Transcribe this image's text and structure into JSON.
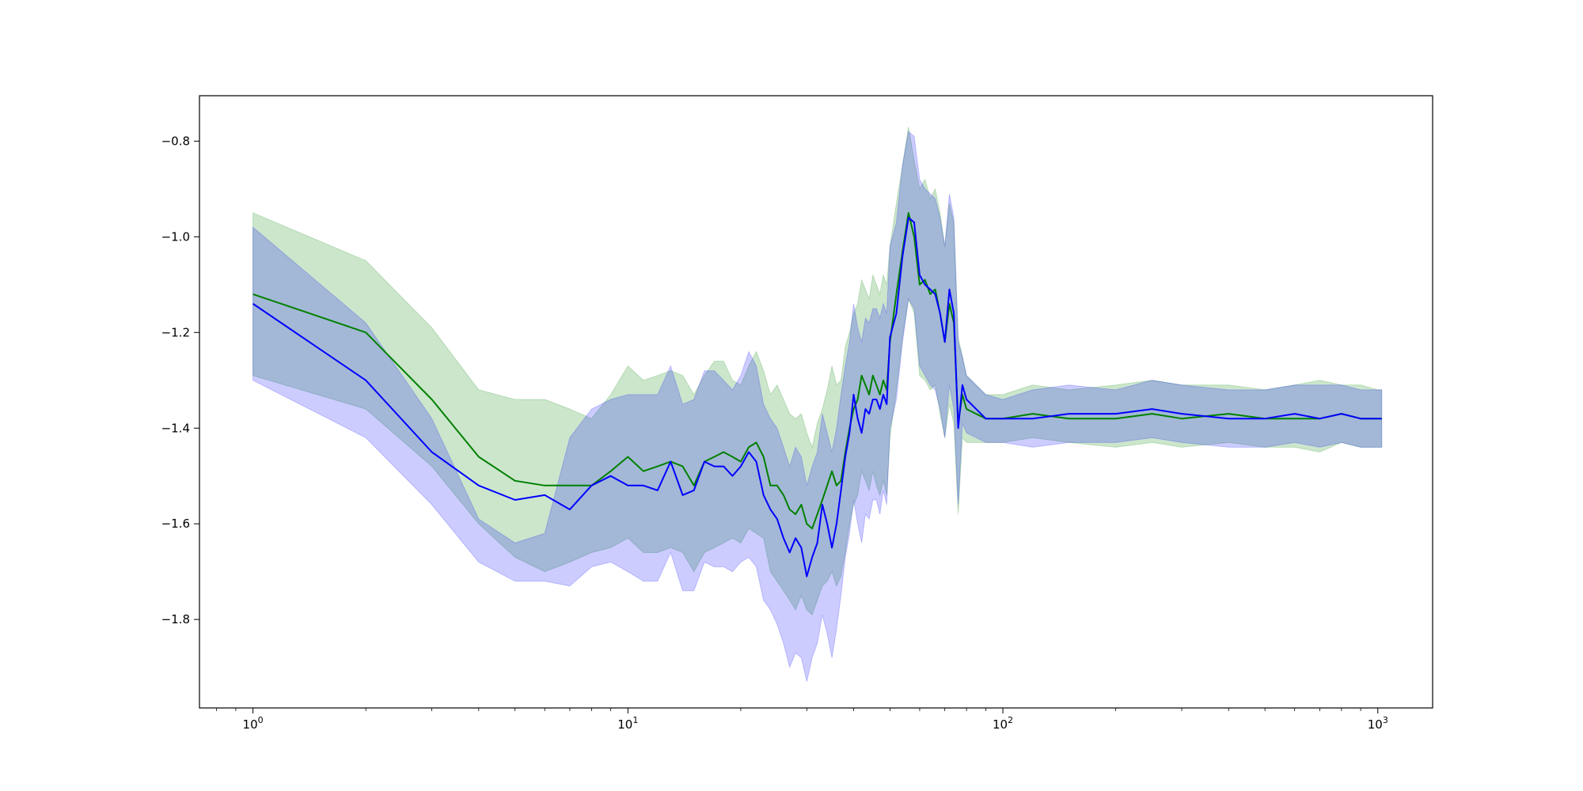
{
  "chart_data": {
    "type": "line",
    "title": "",
    "xlabel": "",
    "ylabel": "",
    "x_scale": "log",
    "xlim": [
      0.72,
      1400
    ],
    "ylim": [
      -1.985,
      -0.705
    ],
    "grid": false,
    "legend": "none",
    "x_ticks": [
      {
        "value": 1,
        "base": "10",
        "exp": "0"
      },
      {
        "value": 10,
        "base": "10",
        "exp": "1"
      },
      {
        "value": 100,
        "base": "10",
        "exp": "2"
      },
      {
        "value": 1000,
        "base": "10",
        "exp": "3"
      }
    ],
    "y_ticks": [
      {
        "value": -0.8,
        "label": "−0.8"
      },
      {
        "value": -1.0,
        "label": "−1.0"
      },
      {
        "value": -1.2,
        "label": "−1.2"
      },
      {
        "value": -1.4,
        "label": "−1.4"
      },
      {
        "value": -1.6,
        "label": "−1.6"
      },
      {
        "value": -1.8,
        "label": "−1.8"
      }
    ],
    "series": [
      {
        "color": "#008000",
        "band_color": "#008000",
        "band_opacity": 0.2,
        "x": [
          1,
          2,
          3,
          4,
          5,
          6,
          7,
          8,
          9,
          10,
          11,
          12,
          13,
          14,
          15,
          16,
          17,
          18,
          19,
          20,
          21,
          22,
          23,
          24,
          25,
          26,
          27,
          28,
          29,
          30,
          31,
          32,
          33,
          34,
          35,
          36,
          37,
          38,
          39,
          40,
          41,
          42,
          43,
          44,
          45,
          46,
          47,
          48,
          49,
          50,
          52,
          54,
          56,
          58,
          60,
          62,
          64,
          66,
          68,
          70,
          72,
          74,
          76,
          78,
          80,
          90,
          100,
          120,
          150,
          200,
          250,
          300,
          400,
          500,
          600,
          700,
          800,
          900,
          1000,
          1024
        ],
        "y": [
          -1.12,
          -1.2,
          -1.34,
          -1.46,
          -1.51,
          -1.52,
          -1.52,
          -1.52,
          -1.49,
          -1.46,
          -1.49,
          -1.48,
          -1.47,
          -1.48,
          -1.52,
          -1.47,
          -1.46,
          -1.45,
          -1.46,
          -1.47,
          -1.44,
          -1.43,
          -1.46,
          -1.52,
          -1.52,
          -1.54,
          -1.57,
          -1.58,
          -1.56,
          -1.6,
          -1.61,
          -1.58,
          -1.55,
          -1.52,
          -1.49,
          -1.52,
          -1.51,
          -1.45,
          -1.4,
          -1.36,
          -1.34,
          -1.29,
          -1.31,
          -1.33,
          -1.29,
          -1.31,
          -1.33,
          -1.3,
          -1.32,
          -1.22,
          -1.12,
          -1.03,
          -0.95,
          -1.0,
          -1.1,
          -1.09,
          -1.12,
          -1.11,
          -1.16,
          -1.22,
          -1.14,
          -1.18,
          -1.39,
          -1.33,
          -1.36,
          -1.38,
          -1.38,
          -1.37,
          -1.38,
          -1.38,
          -1.37,
          -1.38,
          -1.37,
          -1.38,
          -1.38,
          -1.38,
          -1.37,
          -1.38,
          -1.38,
          -1.38
        ],
        "upper": [
          -0.95,
          -1.05,
          -1.19,
          -1.32,
          -1.34,
          -1.34,
          -1.36,
          -1.38,
          -1.33,
          -1.27,
          -1.3,
          -1.29,
          -1.28,
          -1.29,
          -1.33,
          -1.29,
          -1.26,
          -1.26,
          -1.3,
          -1.31,
          -1.27,
          -1.24,
          -1.28,
          -1.33,
          -1.31,
          -1.34,
          -1.37,
          -1.38,
          -1.37,
          -1.41,
          -1.44,
          -1.39,
          -1.36,
          -1.32,
          -1.27,
          -1.31,
          -1.3,
          -1.23,
          -1.2,
          -1.16,
          -1.14,
          -1.09,
          -1.11,
          -1.13,
          -1.08,
          -1.1,
          -1.12,
          -1.08,
          -1.1,
          -1.02,
          -0.93,
          -0.85,
          -0.77,
          -0.84,
          -0.9,
          -0.88,
          -0.92,
          -0.9,
          -0.95,
          -1.02,
          -0.93,
          -0.97,
          -1.21,
          -1.25,
          -1.29,
          -1.33,
          -1.33,
          -1.31,
          -1.32,
          -1.31,
          -1.3,
          -1.31,
          -1.31,
          -1.32,
          -1.31,
          -1.3,
          -1.31,
          -1.31,
          -1.32,
          -1.32
        ],
        "lower": [
          -1.29,
          -1.36,
          -1.48,
          -1.6,
          -1.67,
          -1.7,
          -1.68,
          -1.66,
          -1.65,
          -1.63,
          -1.66,
          -1.66,
          -1.65,
          -1.66,
          -1.7,
          -1.66,
          -1.65,
          -1.64,
          -1.63,
          -1.64,
          -1.61,
          -1.62,
          -1.63,
          -1.7,
          -1.72,
          -1.74,
          -1.76,
          -1.78,
          -1.75,
          -1.78,
          -1.79,
          -1.76,
          -1.73,
          -1.72,
          -1.7,
          -1.73,
          -1.71,
          -1.66,
          -1.6,
          -1.56,
          -1.54,
          -1.49,
          -1.51,
          -1.53,
          -1.49,
          -1.52,
          -1.54,
          -1.51,
          -1.54,
          -1.42,
          -1.32,
          -1.21,
          -1.13,
          -1.16,
          -1.29,
          -1.3,
          -1.32,
          -1.31,
          -1.37,
          -1.42,
          -1.35,
          -1.39,
          -1.58,
          -1.42,
          -1.43,
          -1.43,
          -1.43,
          -1.42,
          -1.43,
          -1.44,
          -1.43,
          -1.44,
          -1.43,
          -1.44,
          -1.44,
          -1.45,
          -1.43,
          -1.44,
          -1.44,
          -1.44
        ]
      },
      {
        "color": "#0000ff",
        "band_color": "#0000ff",
        "band_opacity": 0.2,
        "x": [
          1,
          2,
          3,
          4,
          5,
          6,
          7,
          8,
          9,
          10,
          11,
          12,
          13,
          14,
          15,
          16,
          17,
          18,
          19,
          20,
          21,
          22,
          23,
          24,
          25,
          26,
          27,
          28,
          29,
          30,
          31,
          32,
          33,
          34,
          35,
          36,
          37,
          38,
          39,
          40,
          41,
          42,
          43,
          44,
          45,
          46,
          47,
          48,
          49,
          50,
          52,
          54,
          56,
          58,
          60,
          62,
          64,
          66,
          68,
          70,
          72,
          74,
          76,
          78,
          80,
          90,
          100,
          120,
          150,
          200,
          250,
          300,
          400,
          500,
          600,
          700,
          800,
          900,
          1000,
          1024
        ],
        "y": [
          -1.14,
          -1.3,
          -1.45,
          -1.52,
          -1.55,
          -1.54,
          -1.57,
          -1.52,
          -1.5,
          -1.52,
          -1.52,
          -1.53,
          -1.47,
          -1.54,
          -1.53,
          -1.47,
          -1.48,
          -1.48,
          -1.5,
          -1.48,
          -1.45,
          -1.47,
          -1.54,
          -1.57,
          -1.59,
          -1.63,
          -1.66,
          -1.63,
          -1.65,
          -1.71,
          -1.67,
          -1.64,
          -1.56,
          -1.6,
          -1.65,
          -1.6,
          -1.53,
          -1.46,
          -1.41,
          -1.33,
          -1.38,
          -1.41,
          -1.36,
          -1.37,
          -1.34,
          -1.34,
          -1.36,
          -1.33,
          -1.35,
          -1.21,
          -1.16,
          -1.04,
          -0.96,
          -0.97,
          -1.08,
          -1.1,
          -1.11,
          -1.12,
          -1.16,
          -1.22,
          -1.11,
          -1.16,
          -1.4,
          -1.31,
          -1.34,
          -1.38,
          -1.38,
          -1.38,
          -1.37,
          -1.37,
          -1.36,
          -1.37,
          -1.38,
          -1.38,
          -1.37,
          -1.38,
          -1.37,
          -1.38,
          -1.38,
          -1.38
        ],
        "upper": [
          -0.98,
          -1.18,
          -1.38,
          -1.59,
          -1.64,
          -1.62,
          -1.42,
          -1.36,
          -1.34,
          -1.33,
          -1.33,
          -1.33,
          -1.27,
          -1.35,
          -1.34,
          -1.28,
          -1.28,
          -1.3,
          -1.32,
          -1.29,
          -1.24,
          -1.27,
          -1.35,
          -1.38,
          -1.4,
          -1.44,
          -1.48,
          -1.44,
          -1.46,
          -1.52,
          -1.48,
          -1.45,
          -1.37,
          -1.41,
          -1.45,
          -1.4,
          -1.33,
          -1.27,
          -1.22,
          -1.14,
          -1.19,
          -1.22,
          -1.17,
          -1.18,
          -1.15,
          -1.15,
          -1.17,
          -1.14,
          -1.16,
          -1.02,
          -0.97,
          -0.85,
          -0.78,
          -0.79,
          -0.88,
          -0.9,
          -0.91,
          -0.92,
          -0.96,
          -1.02,
          -0.91,
          -0.96,
          -1.22,
          -1.25,
          -1.29,
          -1.33,
          -1.34,
          -1.32,
          -1.31,
          -1.32,
          -1.3,
          -1.31,
          -1.32,
          -1.32,
          -1.31,
          -1.31,
          -1.31,
          -1.32,
          -1.32,
          -1.32
        ],
        "lower": [
          -1.3,
          -1.42,
          -1.56,
          -1.68,
          -1.72,
          -1.72,
          -1.73,
          -1.69,
          -1.68,
          -1.7,
          -1.72,
          -1.72,
          -1.66,
          -1.74,
          -1.74,
          -1.68,
          -1.69,
          -1.69,
          -1.7,
          -1.68,
          -1.67,
          -1.69,
          -1.76,
          -1.78,
          -1.81,
          -1.85,
          -1.9,
          -1.87,
          -1.88,
          -1.93,
          -1.88,
          -1.85,
          -1.79,
          -1.83,
          -1.88,
          -1.82,
          -1.75,
          -1.67,
          -1.62,
          -1.55,
          -1.6,
          -1.64,
          -1.58,
          -1.59,
          -1.55,
          -1.55,
          -1.58,
          -1.53,
          -1.56,
          -1.4,
          -1.34,
          -1.22,
          -1.13,
          -1.15,
          -1.27,
          -1.29,
          -1.31,
          -1.32,
          -1.36,
          -1.42,
          -1.31,
          -1.36,
          -1.56,
          -1.39,
          -1.41,
          -1.43,
          -1.43,
          -1.44,
          -1.43,
          -1.43,
          -1.42,
          -1.43,
          -1.44,
          -1.44,
          -1.43,
          -1.44,
          -1.43,
          -1.44,
          -1.44,
          -1.44
        ]
      }
    ]
  }
}
